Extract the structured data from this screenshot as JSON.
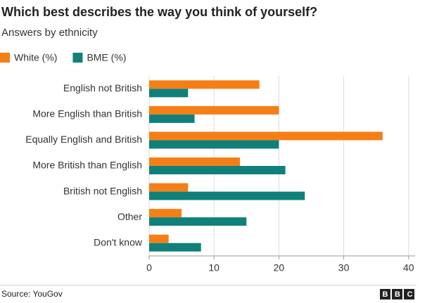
{
  "chart_data": {
    "type": "hbar",
    "title": "Which best describes the way you think of yourself?",
    "subtitle": "Answers by ethnicity",
    "categories": [
      "English not British",
      "More English than British",
      "Equally English and British",
      "More British than English",
      "British not English",
      "Other",
      "Don't know"
    ],
    "series": [
      {
        "name": "White (%)",
        "color": "#f57f17",
        "values": [
          17,
          20,
          36,
          14,
          6,
          5,
          3
        ]
      },
      {
        "name": "BME (%)",
        "color": "#10807a",
        "values": [
          6,
          7,
          20,
          21,
          24,
          15,
          8
        ]
      }
    ],
    "xlim": [
      0,
      41
    ],
    "xticks": [
      0,
      10,
      20,
      30,
      40
    ],
    "grid": true,
    "legend": "top-left",
    "source": "Source: YouGov",
    "logo": "BBC"
  }
}
